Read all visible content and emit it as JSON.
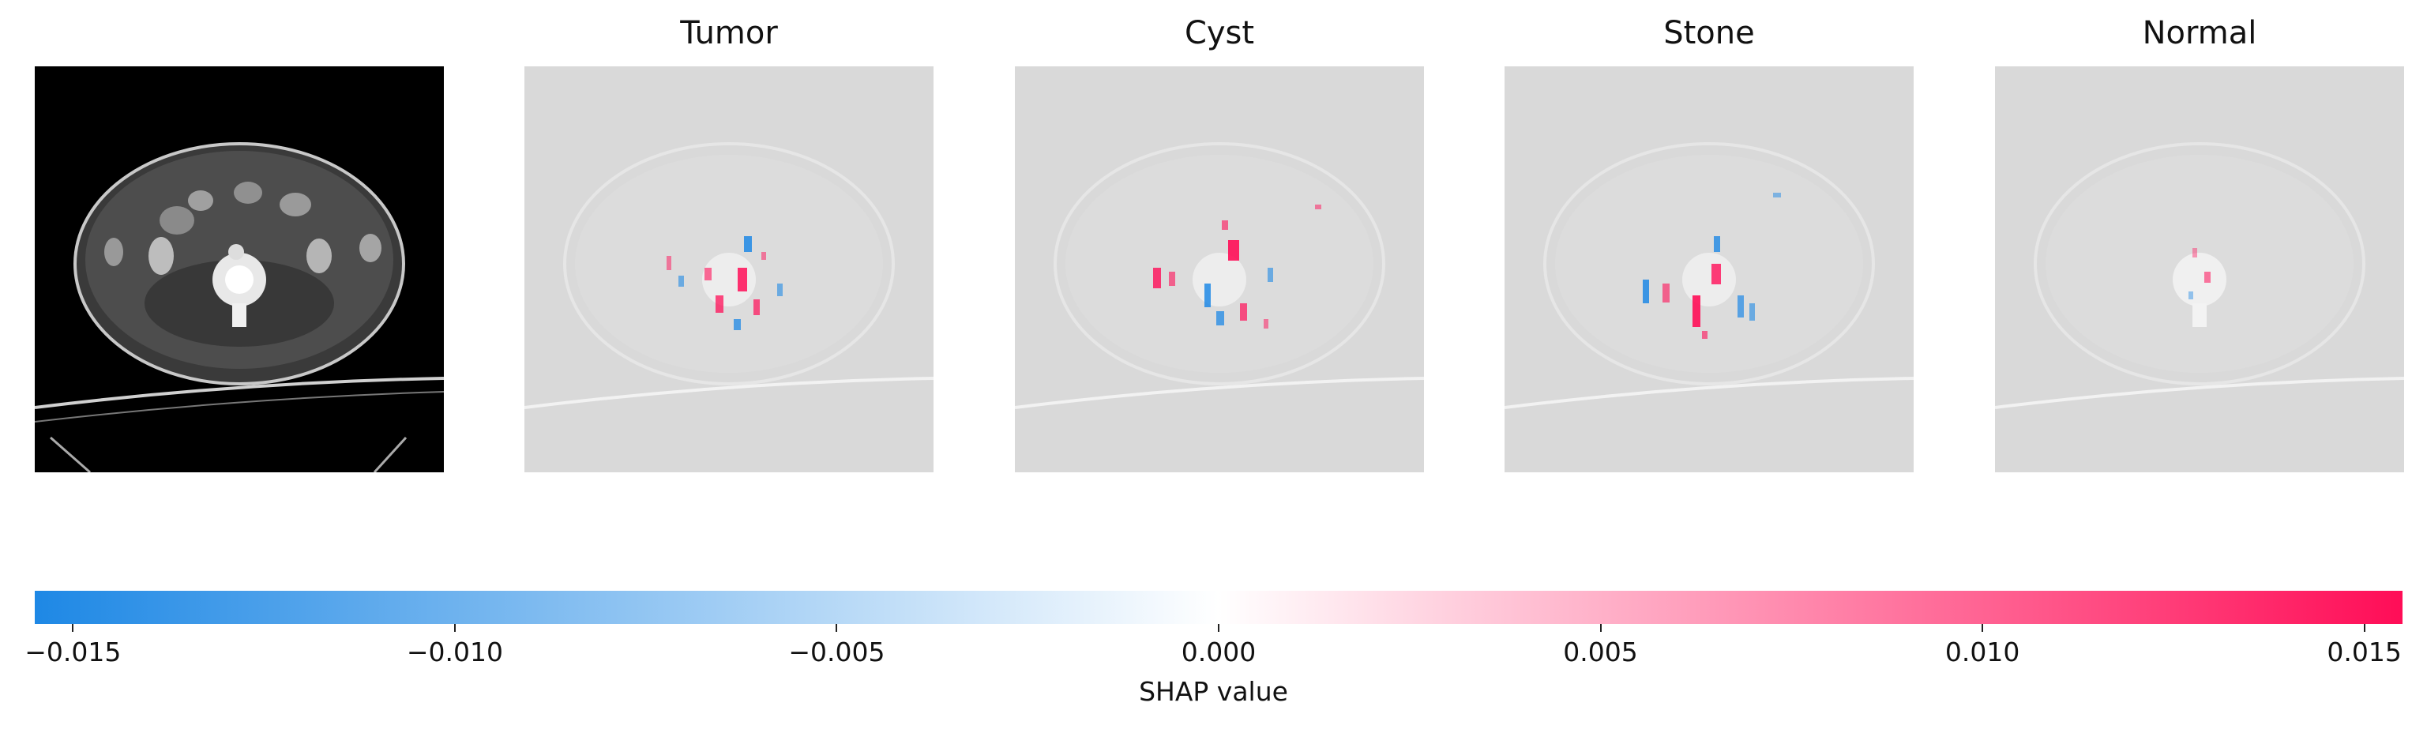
{
  "chart_data": {
    "type": "heatmap",
    "description_panels": [
      "input",
      "Tumor",
      "Cyst",
      "Stone",
      "Normal"
    ],
    "panels": [
      {
        "title": "",
        "kind": "ct-image"
      },
      {
        "title": "Tumor",
        "kind": "shap-overlay"
      },
      {
        "title": "Cyst",
        "kind": "shap-overlay"
      },
      {
        "title": "Stone",
        "kind": "shap-overlay"
      },
      {
        "title": "Normal",
        "kind": "shap-overlay"
      }
    ],
    "colorbar": {
      "label": "SHAP value",
      "range": [
        -0.0155,
        0.0155
      ],
      "ticks": [
        -0.015,
        -0.01,
        -0.005,
        0.0,
        0.005,
        0.01,
        0.015
      ],
      "tick_labels": [
        "−0.015",
        "−0.010",
        "−0.005",
        "0.000",
        "0.005",
        "0.010",
        "0.015"
      ],
      "colors": {
        "negative": "#1e88e5",
        "zero": "#ffffff",
        "positive": "#ff0d57"
      }
    }
  }
}
